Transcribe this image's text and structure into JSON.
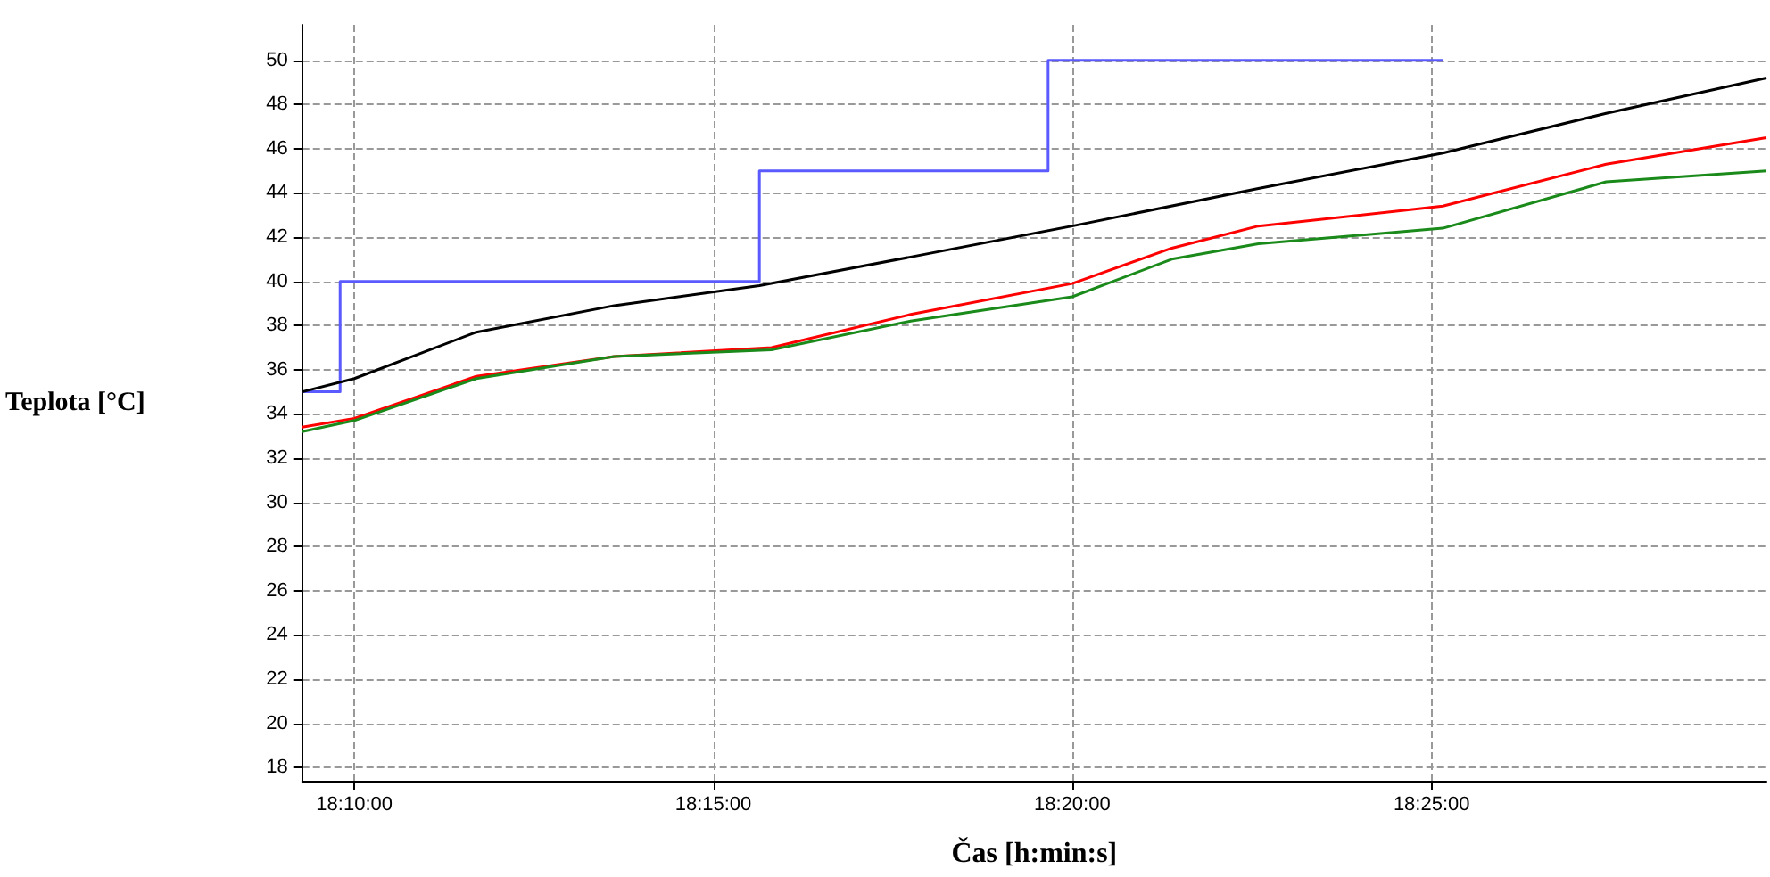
{
  "chart_data": {
    "type": "line",
    "xlabel": "Čas [h:min:s]",
    "ylabel": "Teplota [°C]",
    "xlim": [
      18.1546,
      18.4944
    ],
    "ylim": [
      17.4,
      51.6
    ],
    "xticks": [
      {
        "value": 18.1667,
        "label": "18:10:00"
      },
      {
        "value": 18.25,
        "label": "18:15:00"
      },
      {
        "value": 18.3333,
        "label": "18:20:00"
      },
      {
        "value": 18.4167,
        "label": "18:25:00"
      }
    ],
    "yticks": [
      18,
      20,
      22,
      24,
      26,
      28,
      30,
      32,
      34,
      36,
      38,
      40,
      42,
      44,
      46,
      48,
      50
    ],
    "grid": true,
    "marker": "none",
    "line_style": "solid",
    "series": [
      {
        "type": "step",
        "color": "#5a5aff",
        "x": [
          18.1546,
          18.1634,
          18.2607,
          18.3277,
          18.4193
        ],
        "values": [
          35,
          40,
          45,
          50,
          50
        ]
      },
      {
        "color": "#000000",
        "x": [
          18.1546,
          18.1667,
          18.195,
          18.227,
          18.2607,
          18.2958,
          18.3333,
          18.3765,
          18.4193,
          18.4572,
          18.4944
        ],
        "values": [
          35,
          35.6,
          37.7,
          38.9,
          39.8,
          41.1,
          42.5,
          44.2,
          45.8,
          47.6,
          49.2
        ]
      },
      {
        "color": "#ff0000",
        "x": [
          18.1546,
          18.1667,
          18.195,
          18.227,
          18.2635,
          18.2958,
          18.3333,
          18.3564,
          18.3765,
          18.4193,
          18.4572,
          18.4944
        ],
        "values": [
          33.4,
          33.8,
          35.7,
          36.6,
          37,
          38.5,
          39.9,
          41.5,
          42.5,
          43.4,
          45.3,
          46.5
        ]
      },
      {
        "color": "#1a8a1a",
        "x": [
          18.1546,
          18.1667,
          18.195,
          18.227,
          18.2635,
          18.2958,
          18.3333,
          18.3564,
          18.3765,
          18.4193,
          18.4572,
          18.4944
        ],
        "values": [
          33.2,
          33.7,
          35.6,
          36.6,
          36.9,
          38.2,
          39.3,
          41,
          41.7,
          42.4,
          44.5,
          45
        ]
      }
    ]
  }
}
